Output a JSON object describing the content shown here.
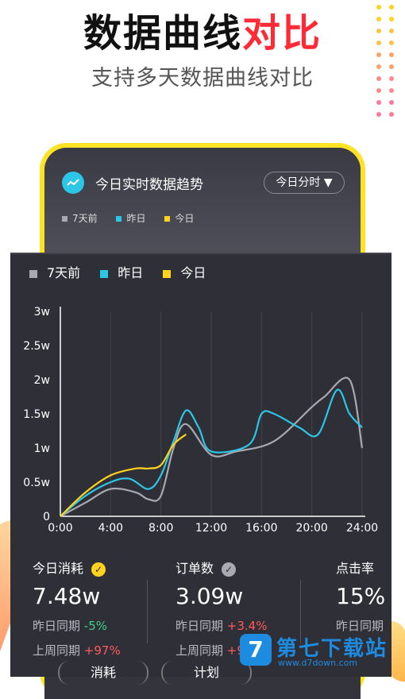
{
  "hero": {
    "title_main": "数据曲线",
    "title_accent": "对比",
    "subtitle": "支持多天数据曲线对比"
  },
  "phone": {
    "header_title": "今日实时数据趋势",
    "range_select": "今日分时",
    "legend": [
      "7天前",
      "昨日",
      "今日"
    ]
  },
  "panel": {
    "legend": [
      {
        "label": "7天前",
        "color": "#a9a9b2"
      },
      {
        "label": "昨日",
        "color": "#2cc6e6"
      },
      {
        "label": "今日",
        "color": "#ffd21e"
      }
    ]
  },
  "chart_data": {
    "type": "line",
    "title": "",
    "xlabel": "",
    "ylabel": "",
    "x_ticks": [
      "0:00",
      "4:00",
      "8:00",
      "12:00",
      "16:00",
      "20:00",
      "24:00"
    ],
    "y_ticks": [
      "0",
      "0.5w",
      "1w",
      "1.5w",
      "2w",
      "2.5w",
      "3w"
    ],
    "xlim": [
      0,
      24
    ],
    "ylim": [
      0,
      3
    ],
    "series": [
      {
        "name": "7天前",
        "color": "#a9a9b2",
        "x": [
          0,
          2,
          4,
          6,
          7,
          8,
          9,
          10,
          12,
          14,
          17,
          20,
          21,
          23,
          24
        ],
        "y": [
          0,
          0.2,
          0.4,
          0.35,
          0.25,
          0.3,
          1.0,
          1.35,
          0.9,
          0.95,
          1.1,
          1.6,
          1.75,
          2.0,
          1.0
        ]
      },
      {
        "name": "昨日",
        "color": "#2cc6e6",
        "x": [
          0,
          2,
          4,
          5.5,
          7,
          8,
          9,
          10,
          11,
          12,
          15,
          16,
          17,
          19,
          20.5,
          22,
          23,
          24
        ],
        "y": [
          0,
          0.3,
          0.5,
          0.55,
          0.4,
          0.6,
          1.1,
          1.55,
          1.3,
          0.95,
          1.05,
          1.5,
          1.5,
          1.3,
          1.2,
          1.85,
          1.5,
          1.3
        ]
      },
      {
        "name": "今日",
        "color": "#ffd21e",
        "x": [
          0,
          2,
          4,
          6,
          7,
          8,
          9,
          10
        ],
        "y": [
          0,
          0.35,
          0.6,
          0.7,
          0.7,
          0.75,
          1.05,
          1.2
        ]
      }
    ]
  },
  "stats": [
    {
      "label": "今日消耗",
      "value": "7.48w",
      "line1_label": "昨日同期",
      "line1_value": "-5%",
      "line2_label": "上周同期",
      "line2_value": "+97%"
    },
    {
      "label": "订单数",
      "value": "3.09w",
      "line1_label": "昨日同期",
      "line1_value": "+3.4%",
      "line2_label": "上周同期",
      "line2_value": "+98"
    },
    {
      "label": "点击率",
      "value": "15%",
      "line1_label": "昨日同期",
      "line1_value": "",
      "line2_label": "",
      "line2_value": ""
    }
  ],
  "tabs": [
    "消耗",
    "计划"
  ],
  "watermark": {
    "badge": "7",
    "text": "第七下载站",
    "url": "www.d7down.com"
  }
}
